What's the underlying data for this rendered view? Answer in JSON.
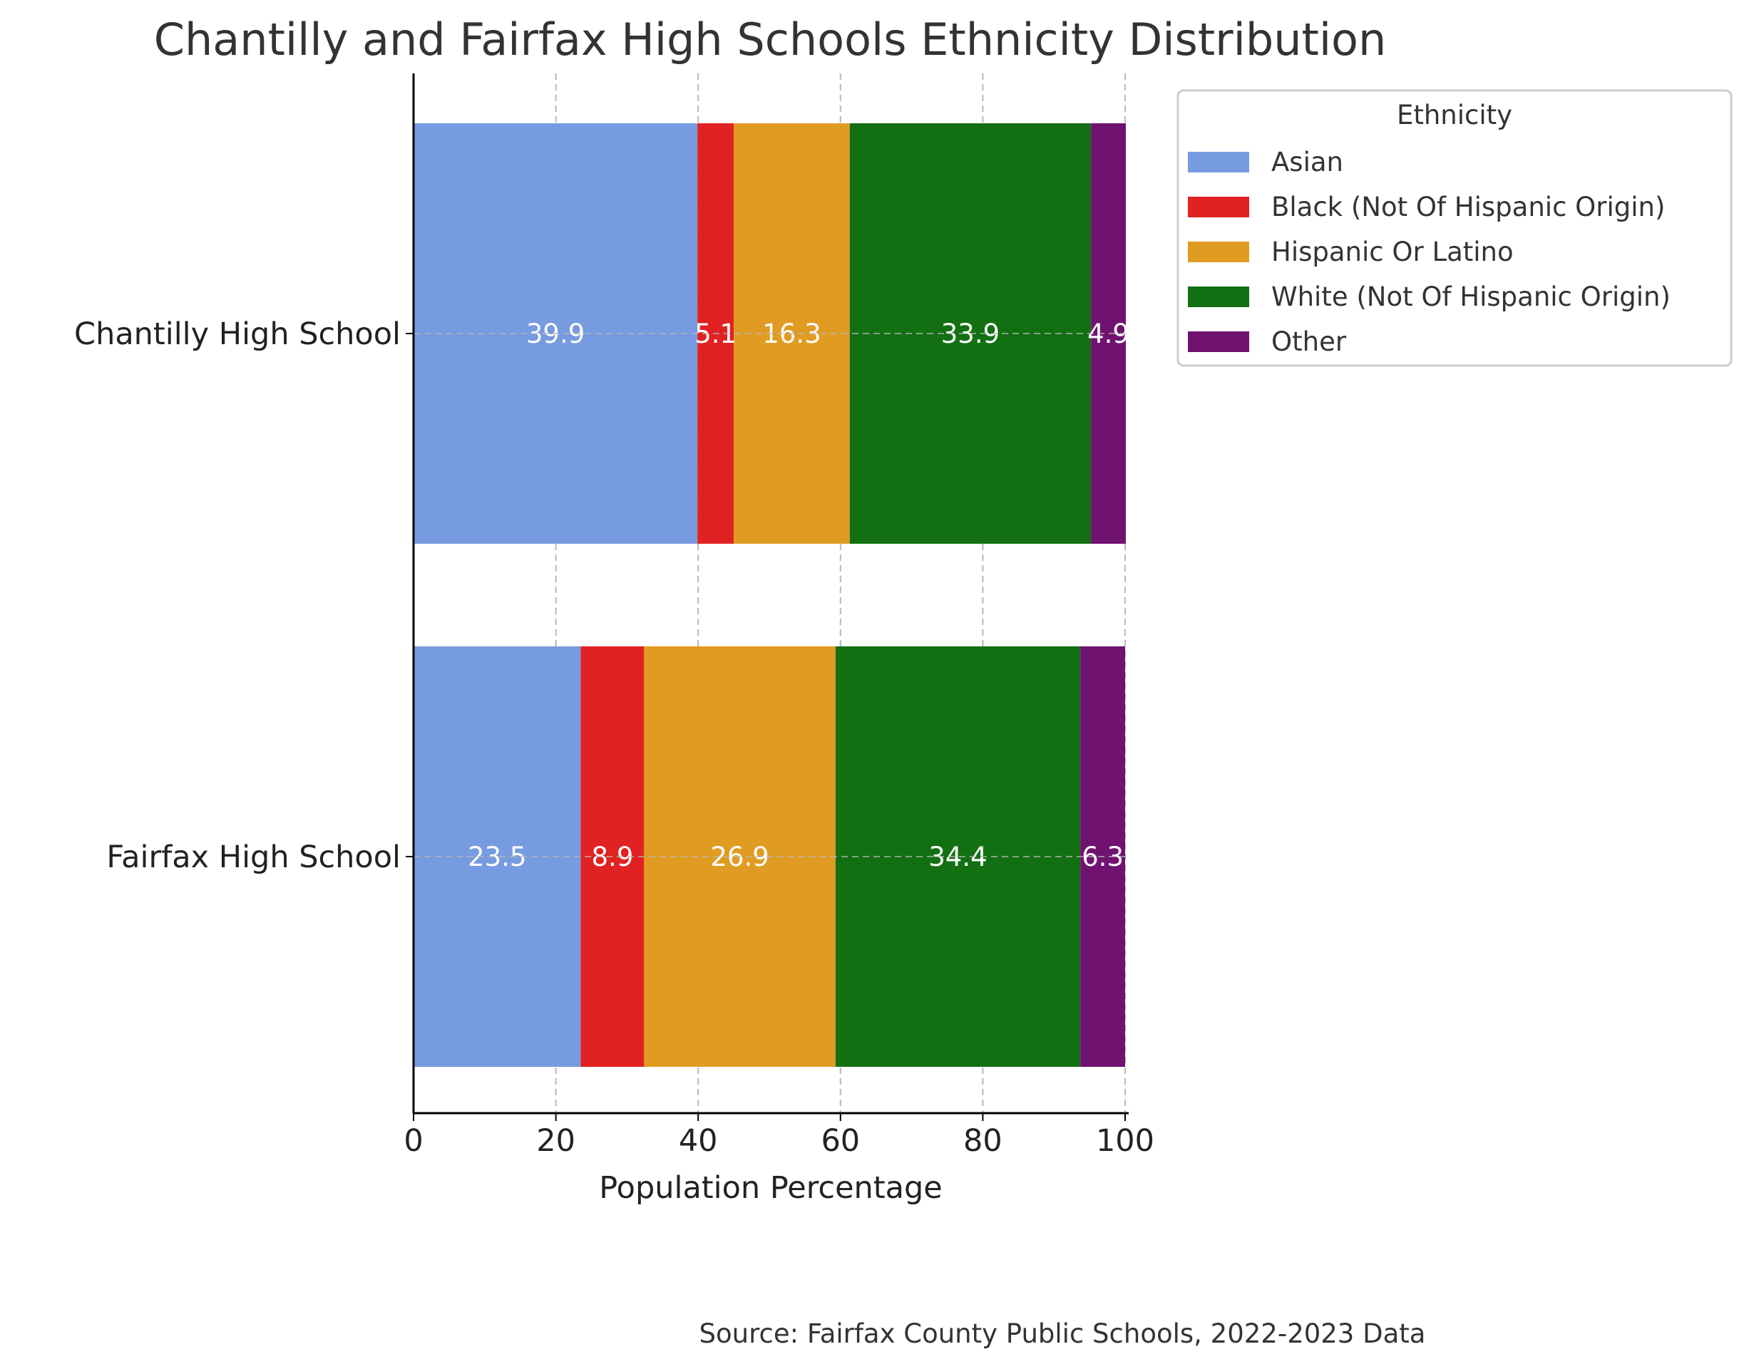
{
  "chart_data": {
    "type": "bar",
    "orientation": "horizontal",
    "stacked": true,
    "title": "Chantilly and Fairfax High Schools Ethnicity Distribution",
    "xlabel": "Population Percentage",
    "ylabel": "",
    "xlim": [
      0,
      100
    ],
    "xticks": [
      "0",
      "20",
      "40",
      "60",
      "80",
      "100"
    ],
    "grid": true,
    "categories": [
      "Chantilly High School",
      "Fairfax High School"
    ],
    "legend": {
      "title": "Ethnicity",
      "placement": "outside-top-right"
    },
    "series": [
      {
        "name": "Asian",
        "color": "#779be0",
        "values": [
          39.9,
          23.5
        ],
        "labels": [
          "39.9",
          "23.5"
        ]
      },
      {
        "name": "Black (Not Of Hispanic Origin)",
        "color": "#e02222",
        "values": [
          5.1,
          8.9
        ],
        "labels": [
          "5.1",
          "8.9"
        ]
      },
      {
        "name": "Hispanic Or Latino",
        "color": "#e09c22",
        "values": [
          16.3,
          26.9
        ],
        "labels": [
          "16.3",
          "26.9"
        ]
      },
      {
        "name": "White (Not Of Hispanic Origin)",
        "color": "#127012",
        "values": [
          33.9,
          34.4
        ],
        "labels": [
          "33.9",
          "34.4"
        ]
      },
      {
        "name": "Other",
        "color": "#701270",
        "values": [
          4.9,
          6.3
        ],
        "labels": [
          "4.9",
          "6.3"
        ]
      }
    ],
    "source": "Source: Fairfax County Public Schools, 2022-2023 Data"
  }
}
